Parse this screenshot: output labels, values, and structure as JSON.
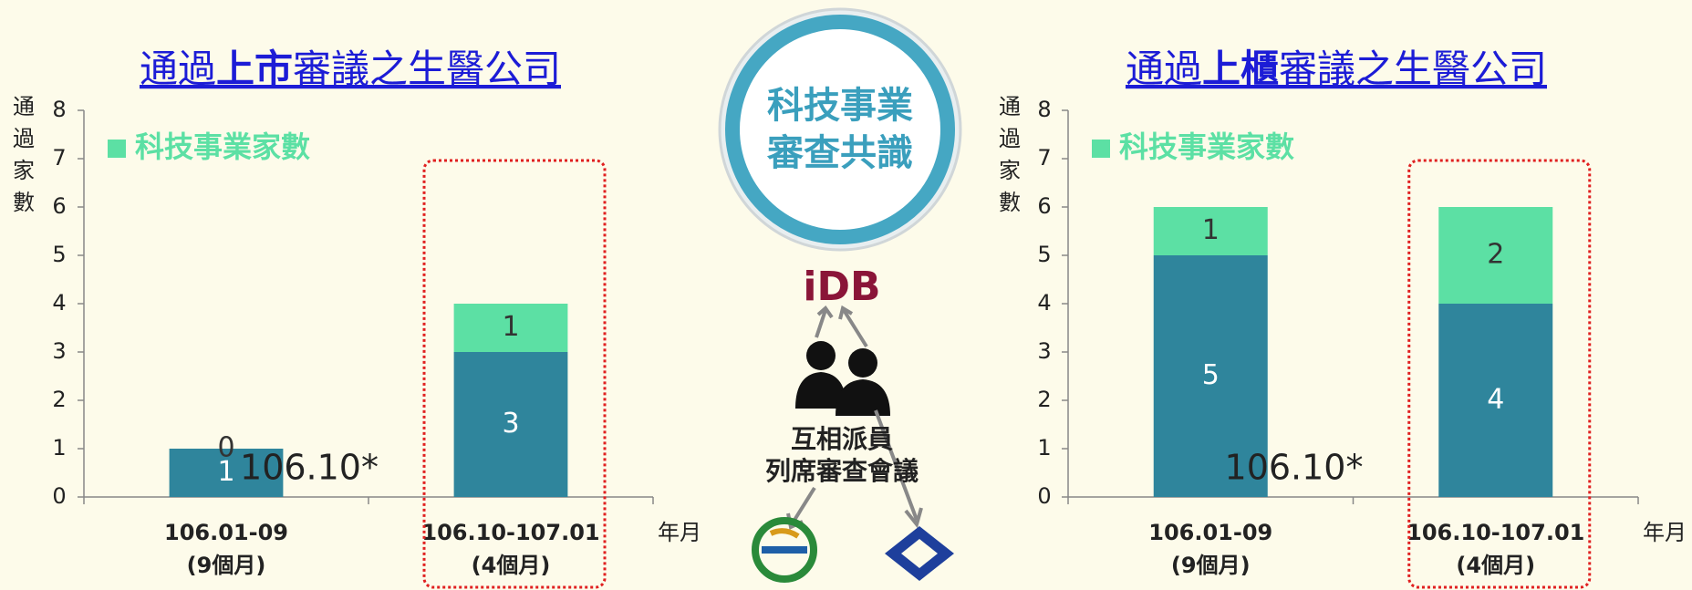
{
  "chart_data": [
    {
      "type": "stacked_bar",
      "title": [
        {
          "text": "通過"
        },
        {
          "text": "上市",
          "bold": true
        },
        {
          "text": "審議之生醫公司"
        }
      ],
      "ylabel": [
        "通",
        "過",
        "家",
        "數"
      ],
      "xlabel": "年月",
      "categories": [
        [
          "106.01-09",
          "(9個月)"
        ],
        [
          "106.10-107.01",
          "(4個月)"
        ]
      ],
      "series": [
        {
          "color": "#2f859c",
          "label_color": "#ffffff",
          "values": [
            1,
            3
          ]
        },
        {
          "name": "科技事業家數",
          "color": "#5ce0a4",
          "label_color": "#333333",
          "values": [
            0,
            1
          ]
        }
      ],
      "annotation": "106.10*",
      "highlight": 1,
      "ylim": [
        0,
        8
      ],
      "yticks": [
        0,
        1,
        2,
        3,
        4,
        5,
        6,
        7,
        8
      ],
      "grid": false
    },
    {
      "type": "stacked_bar",
      "title": [
        {
          "text": "通過"
        },
        {
          "text": "上櫃",
          "bold": true
        },
        {
          "text": "審議之生醫公司"
        }
      ],
      "ylabel": [
        "通",
        "過",
        "家",
        "數"
      ],
      "xlabel": "年月",
      "categories": [
        [
          "106.01-09",
          "(9個月)"
        ],
        [
          "106.10-107.01",
          "(4個月)"
        ]
      ],
      "series": [
        {
          "color": "#2f859c",
          "label_color": "#ffffff",
          "values": [
            5,
            4
          ]
        },
        {
          "name": "科技事業家數",
          "color": "#5ce0a4",
          "label_color": "#333333",
          "values": [
            1,
            2
          ]
        }
      ],
      "annotation": "106.10*",
      "highlight": 1,
      "ylim": [
        0,
        8
      ],
      "yticks": [
        0,
        1,
        2,
        3,
        4,
        5,
        6,
        7,
        8
      ],
      "grid": false
    }
  ],
  "center": {
    "badge": [
      "科技事業",
      "審查共識"
    ],
    "logo": "iDB",
    "caption": [
      "互相派員",
      "列席審查會議"
    ]
  }
}
